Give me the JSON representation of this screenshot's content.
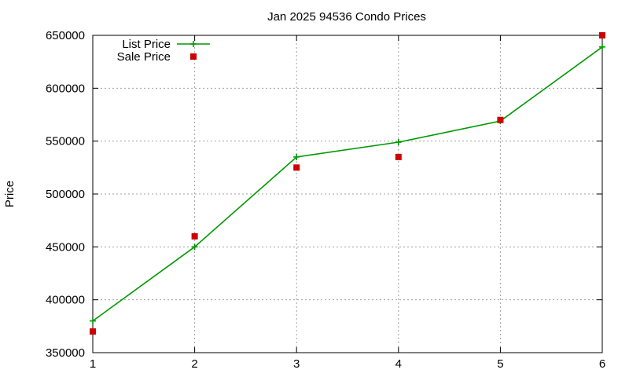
{
  "chart_data": {
    "type": "line",
    "title": "Jan 2025 94536 Condo Prices",
    "xlabel": "",
    "ylabel": "Price",
    "x": [
      1,
      2,
      3,
      4,
      5,
      6
    ],
    "xlim": [
      1,
      6
    ],
    "ylim": [
      350000,
      650000
    ],
    "xticks": [
      1,
      2,
      3,
      4,
      5,
      6
    ],
    "yticks": [
      350000,
      400000,
      450000,
      500000,
      550000,
      600000,
      650000
    ],
    "grid": true,
    "legend_position": "top-left",
    "series": [
      {
        "name": "List Price",
        "style": "line-with-plus-markers",
        "color": "#009900",
        "values": [
          380000,
          450000,
          535000,
          549000,
          569000,
          639000
        ]
      },
      {
        "name": "Sale Price",
        "style": "square-markers",
        "color": "#cc0000",
        "values": [
          370000,
          460000,
          525000,
          535000,
          570000,
          650000
        ]
      }
    ]
  }
}
